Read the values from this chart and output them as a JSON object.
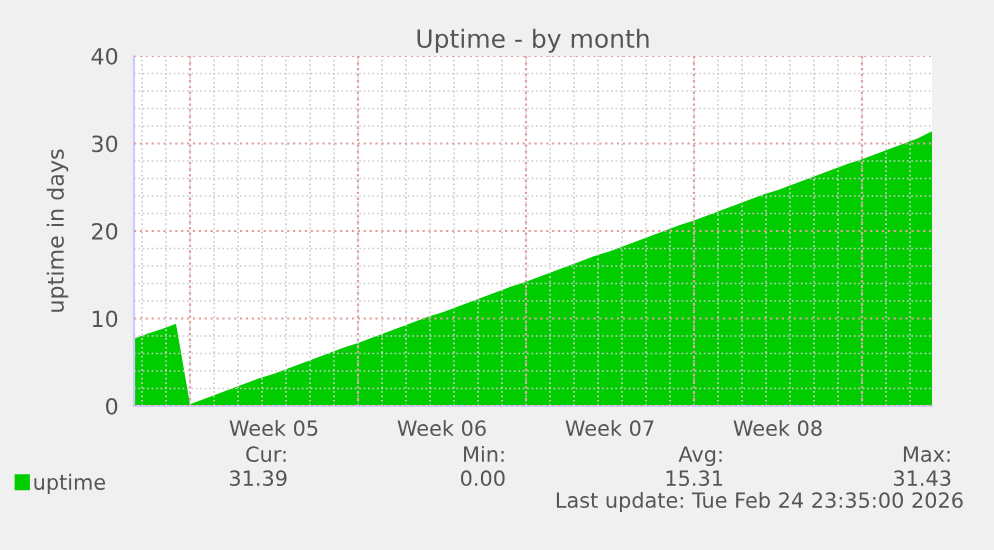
{
  "chart_data": {
    "type": "area",
    "title": "Uptime - by month",
    "ylabel": "uptime in days",
    "categories": [
      null,
      null,
      null,
      null,
      null,
      null,
      null,
      null,
      null,
      null,
      "Week 05",
      null,
      null,
      null,
      null,
      null,
      null,
      null,
      null,
      null,
      null,
      null,
      "Week 06",
      null,
      null,
      null,
      null,
      null,
      null,
      null,
      null,
      null,
      null,
      null,
      "Week 07",
      null,
      null,
      null,
      null,
      null,
      null,
      null,
      null,
      null,
      null,
      null,
      "Week 08",
      null,
      null,
      null,
      null,
      null,
      null,
      null,
      null,
      null,
      null,
      null
    ],
    "series": [
      {
        "name": "uptime",
        "color": "#00cc00",
        "values": [
          7.7,
          8.3,
          8.8,
          9.4,
          0.2,
          0.8,
          1.4,
          2.0,
          2.6,
          3.2,
          3.7,
          4.3,
          4.9,
          5.5,
          6.1,
          6.7,
          7.2,
          7.8,
          8.4,
          9.0,
          9.6,
          10.2,
          10.7,
          11.3,
          11.9,
          12.5,
          13.1,
          13.7,
          14.2,
          14.8,
          15.4,
          16.0,
          16.6,
          17.2,
          17.7,
          18.3,
          18.9,
          19.5,
          20.1,
          20.7,
          21.2,
          21.8,
          22.4,
          23.0,
          23.6,
          24.2,
          24.7,
          25.3,
          25.9,
          26.5,
          27.1,
          27.7,
          28.2,
          28.8,
          29.4,
          30.0,
          30.6,
          31.4
        ]
      }
    ],
    "ylim": [
      0,
      40
    ],
    "yticks": [
      0,
      10,
      20,
      30,
      40
    ],
    "grid": true,
    "legend": "bottom left",
    "annotations": [
      "Cur:",
      "Min:",
      "Avg:",
      "Max:",
      "31.39",
      "0.00",
      "15.31",
      "31.43",
      "Last update: Tue Feb 24 23:35:00 2026"
    ]
  }
}
